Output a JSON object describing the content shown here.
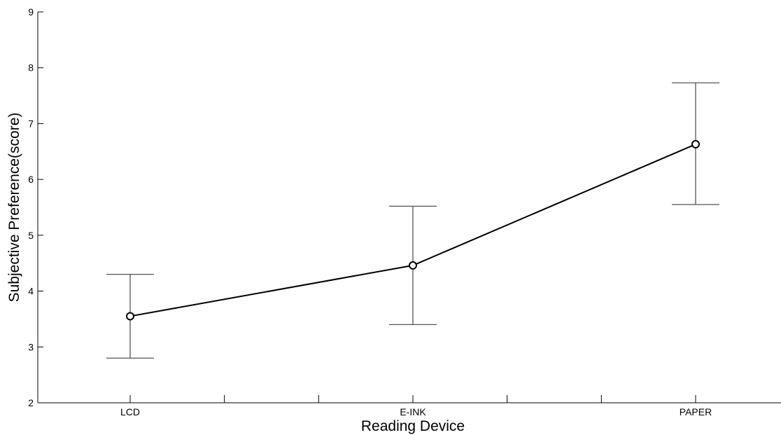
{
  "chart_data": {
    "type": "line",
    "title": "",
    "xlabel": "Reading Device",
    "ylabel": "Subjective Preference(score)",
    "categories": [
      "LCD",
      "E-INK",
      "PAPER"
    ],
    "ylim": [
      2,
      9
    ],
    "yticks": [
      "2",
      "3",
      "4",
      "5",
      "6",
      "7",
      "8",
      "9"
    ],
    "grid": false,
    "series": [
      {
        "values": [
          3.55,
          4.46,
          6.63
        ],
        "error_low": [
          2.8,
          3.4,
          5.55
        ],
        "error_high": [
          4.3,
          5.52,
          7.73
        ]
      }
    ],
    "colors": {
      "line": "#000000",
      "error_bar": "#555555",
      "axis": "#000000"
    }
  }
}
